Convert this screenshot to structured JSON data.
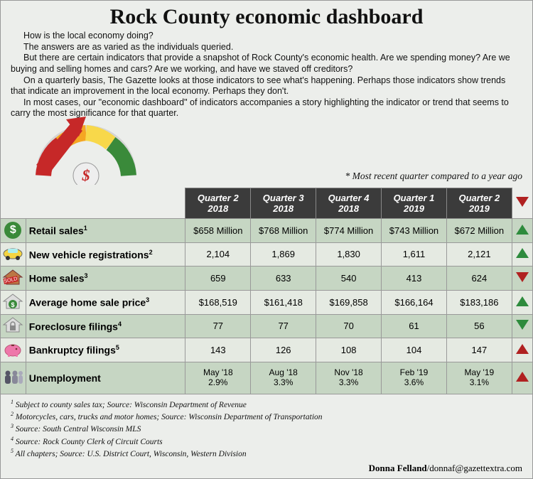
{
  "title": "Rock County economic dashboard",
  "intro": {
    "p1": "How is the local economy doing?",
    "p2": "The answers are as varied as the individuals queried.",
    "p3": "But there are certain indicators that provide a snapshot of Rock County's economic health. Are we spending money? Are we buying and selling homes and cars? Are we working, and have we staved off creditors?",
    "p4": "On a quarterly basis, The Gazette looks at those indicators to see what's happening. Perhaps those indicators show trends that indicate an improvement in the local economy. Perhaps they don't.",
    "p5": "In most cases, our \"economic dashboard\" of indicators accompanies a story highlighting the indicator or trend that seems to carry the most significance for that quarter."
  },
  "note": "* Most recent quarter compared to a year ago",
  "columns": [
    "Quarter 2 2018",
    "Quarter 3 2018",
    "Quarter 4 2018",
    "Quarter 1 2019",
    "Quarter 2 2019"
  ],
  "rows": [
    {
      "icon": "dollar",
      "label": "Retail sales",
      "sup": "1",
      "values": [
        "$658 Million",
        "$768 Million",
        "$774 Million",
        "$743 Million",
        "$672 Million"
      ],
      "trend": "up-green"
    },
    {
      "icon": "car",
      "label": "New vehicle registrations",
      "sup": "2",
      "values": [
        "2,104",
        "1,869",
        "1,830",
        "1,611",
        "2,121"
      ],
      "trend": "up-green"
    },
    {
      "icon": "sold",
      "label": "Home sales",
      "sup": "3",
      "values": [
        "659",
        "633",
        "540",
        "413",
        "624"
      ],
      "trend": "down-red"
    },
    {
      "icon": "house-dollar",
      "label": "Average home sale price",
      "sup": "3",
      "values": [
        "$168,519",
        "$161,418",
        "$169,858",
        "$166,164",
        "$183,186"
      ],
      "trend": "up-green"
    },
    {
      "icon": "house-lock",
      "label": "Foreclosure filings",
      "sup": "4",
      "values": [
        "77",
        "77",
        "70",
        "61",
        "56"
      ],
      "trend": "down-green"
    },
    {
      "icon": "piggy",
      "label": "Bankruptcy filings",
      "sup": "5",
      "values": [
        "143",
        "126",
        "108",
        "104",
        "147"
      ],
      "trend": "up-red"
    },
    {
      "icon": "people",
      "label": "Unemployment",
      "sup": "",
      "values": [
        "May '18\n2.9%",
        "Aug '18\n3.3%",
        "Nov '18\n3.3%",
        "Feb '19\n3.6%",
        "May '19\n3.1%"
      ],
      "trend": "up-red"
    }
  ],
  "footnotes": [
    "1 Subject to county sales tax; Source: Wisconsin Department of Revenue",
    "2 Motorcycles, cars, trucks and motor homes; Source: Wisconsin Department of Transportation",
    "3 Source: South Central Wisconsin MLS",
    "4 Source: Rock County Clerk of Circuit Courts",
    "5 All chapters; Source: U.S. District Court, Wisconsin, Western Division"
  ],
  "credit": {
    "name": "Donna Felland",
    "sep": "/",
    "email": "donnaf@gazettextra.com"
  },
  "colors": {
    "band_a": "#c6d6c3",
    "band_b": "#e5eae2",
    "header_bg": "#3b3b3b",
    "up_green": "#2e8b3d",
    "down_red": "#b02121"
  }
}
